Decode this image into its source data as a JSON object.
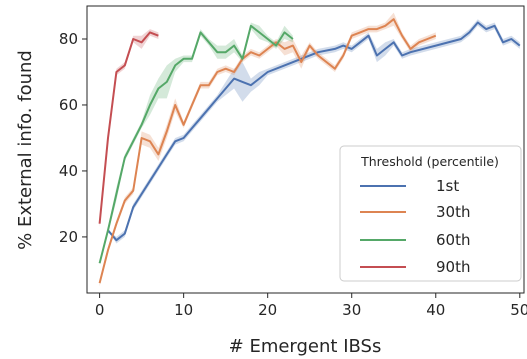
{
  "chart_data": {
    "type": "line",
    "title": "",
    "xlabel": "# Emergent IBSs",
    "ylabel": "% External info. found",
    "xlim": [
      -1.5,
      50.5
    ],
    "ylim": [
      3,
      90
    ],
    "xticks": [
      0,
      10,
      20,
      30,
      40,
      50
    ],
    "yticks": [
      20,
      40,
      60,
      80
    ],
    "grid": false,
    "legend": {
      "title": "Threshold (percentile)",
      "position": "lower-right"
    },
    "series": [
      {
        "name": "1st",
        "color": "#4c72b0",
        "x": [
          1,
          2,
          3,
          4,
          5,
          6,
          7,
          8,
          9,
          10,
          11,
          12,
          13,
          14,
          15,
          16,
          17,
          18,
          19,
          20,
          22,
          24,
          26,
          28,
          29,
          30,
          31,
          32,
          33,
          34,
          35,
          36,
          37,
          40,
          43,
          44,
          45,
          46,
          47,
          48,
          49,
          50
        ],
        "y": [
          22,
          19,
          21,
          29,
          33,
          37,
          41,
          45,
          49,
          50,
          53,
          56,
          59,
          62,
          65,
          68,
          67,
          66,
          68,
          70,
          72,
          74,
          76,
          77,
          78,
          77,
          79,
          81,
          75,
          77,
          79,
          75,
          76,
          78,
          80,
          82,
          85,
          83,
          84,
          79,
          80,
          78
        ],
        "band": [
          0,
          1,
          1,
          1,
          1,
          1,
          1,
          1,
          1,
          1,
          1,
          1,
          1,
          1,
          2,
          3,
          6,
          2,
          2,
          1,
          1,
          1,
          1,
          1,
          1,
          1,
          1,
          1,
          2,
          2,
          1,
          1,
          1,
          1,
          1,
          1,
          1,
          1,
          1,
          1,
          1,
          1
        ]
      },
      {
        "name": "30th",
        "color": "#dd8452",
        "x": [
          0,
          1,
          2,
          3,
          4,
          5,
          6,
          7,
          8,
          9,
          10,
          11,
          12,
          13,
          14,
          15,
          16,
          17,
          18,
          19,
          20,
          21,
          22,
          23,
          24,
          25,
          26,
          27,
          28,
          29,
          30,
          31,
          32,
          33,
          34,
          35,
          36,
          37,
          38,
          39,
          40
        ],
        "y": [
          6,
          16,
          24,
          31,
          34,
          50,
          49,
          45,
          52,
          60,
          54,
          60,
          66,
          66,
          70,
          71,
          70,
          74,
          76,
          75,
          77,
          79,
          77,
          78,
          73,
          78,
          75,
          73,
          71,
          75,
          81,
          82,
          83,
          83,
          84,
          86,
          81,
          77,
          79,
          80,
          81
        ],
        "band": [
          1,
          1,
          1,
          1,
          1,
          2,
          2,
          2,
          2,
          2,
          1,
          1,
          1,
          1,
          1,
          1,
          1,
          1,
          1,
          1,
          1,
          1,
          2,
          2,
          2,
          1,
          1,
          1,
          1,
          1,
          1,
          1,
          1,
          1,
          1,
          2,
          1,
          1,
          1,
          1,
          1
        ]
      },
      {
        "name": "60th",
        "color": "#55a868",
        "x": [
          0,
          1,
          2,
          3,
          4,
          5,
          6,
          7,
          8,
          9,
          10,
          11,
          12,
          13,
          14,
          15,
          16,
          17,
          18,
          19,
          20,
          21,
          22,
          23
        ],
        "y": [
          12,
          22,
          33,
          44,
          49,
          54,
          60,
          65,
          67,
          72,
          74,
          74,
          82,
          79,
          76,
          76,
          78,
          74,
          84,
          82,
          80,
          78,
          82,
          80
        ],
        "band": [
          0,
          1,
          2,
          1,
          1,
          1,
          3,
          3,
          5,
          2,
          1,
          1,
          1,
          1,
          2,
          2,
          2,
          1,
          1,
          2,
          1,
          1,
          2,
          1
        ]
      },
      {
        "name": "90th",
        "color": "#c44e52",
        "x": [
          0,
          1,
          2,
          3,
          4,
          5,
          6,
          7
        ],
        "y": [
          24,
          50,
          70,
          72,
          80,
          79,
          82,
          81
        ],
        "band": [
          1,
          1,
          1,
          1,
          1,
          2,
          1,
          1
        ]
      }
    ]
  }
}
